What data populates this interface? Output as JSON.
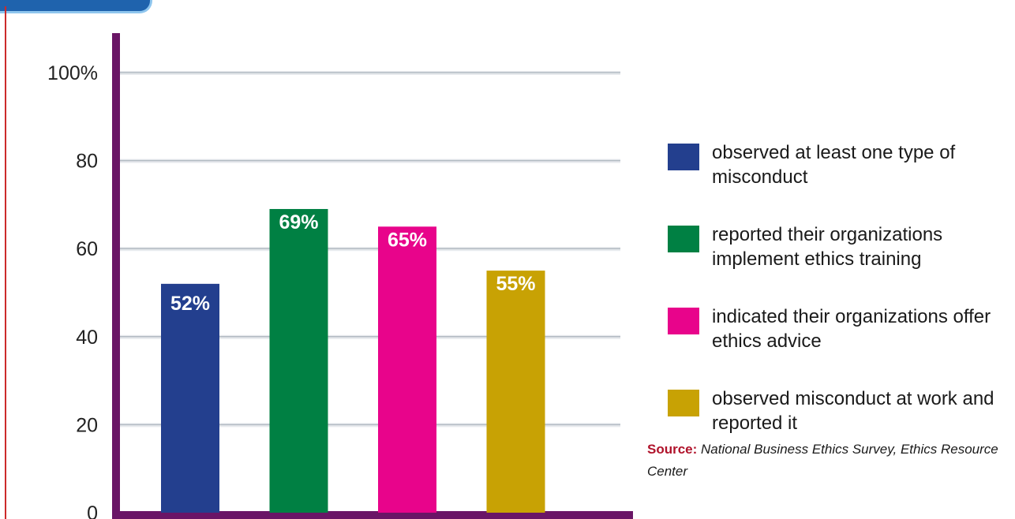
{
  "chart_data": {
    "type": "bar",
    "categories": [
      "observed at least one type of misconduct",
      "reported their organizations implement ethics training",
      "indicated their organizations offer ethics advice",
      "observed misconduct at work and reported it"
    ],
    "values": [
      52,
      69,
      65,
      55
    ],
    "data_labels": [
      "52%",
      "69%",
      "65%",
      "55%"
    ],
    "colors": [
      "#233f8e",
      "#008043",
      "#e8048b",
      "#c8a204"
    ],
    "yticks": [
      0,
      20,
      40,
      60,
      80,
      100
    ],
    "ytick_labels": [
      "0",
      "20",
      "40",
      "60",
      "80",
      "100%"
    ],
    "ylim": [
      0,
      100
    ],
    "grid": true,
    "legend": "right",
    "title": "",
    "xlabel": "",
    "ylabel": ""
  },
  "source": {
    "label": "Source:",
    "text": "National Business Ethics Survey, Ethics Resource Center"
  }
}
